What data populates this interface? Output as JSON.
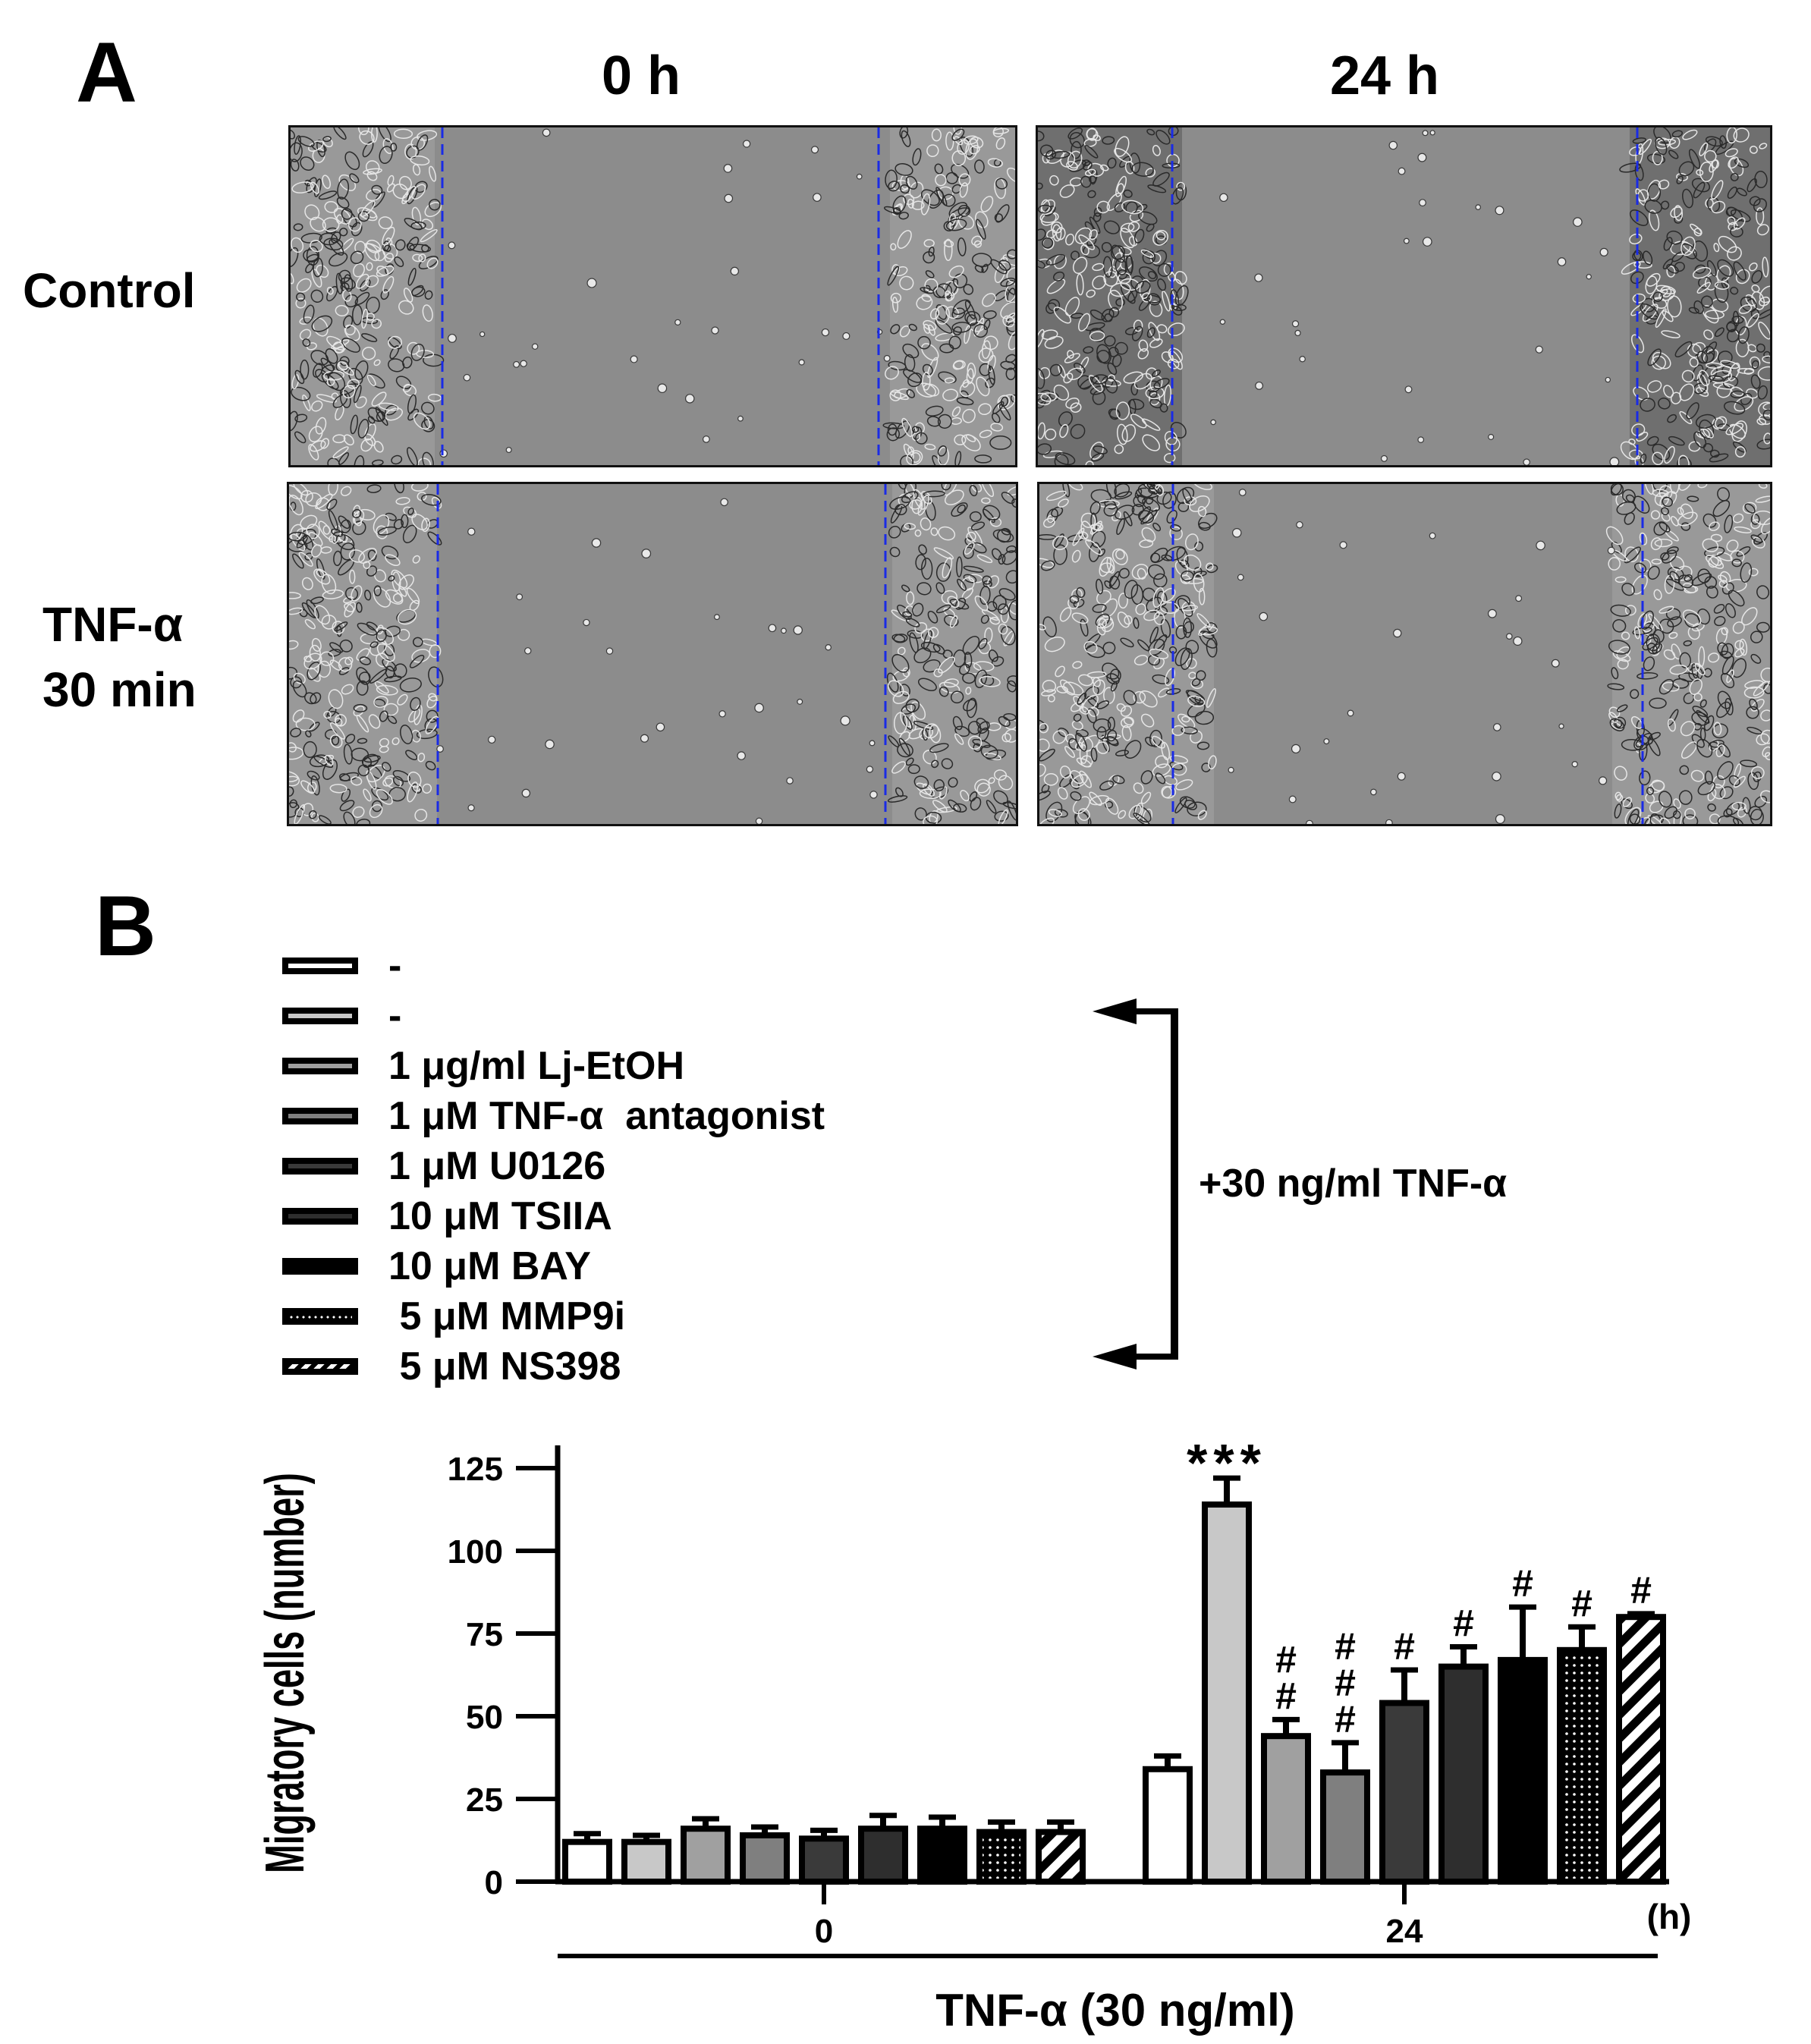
{
  "panel_a": {
    "letter": "A",
    "columns": [
      "0 h",
      "24 h"
    ],
    "rows": [
      {
        "label_lines": [
          "Control"
        ]
      },
      {
        "label_lines": [
          "TNF-α",
          "30 min"
        ]
      }
    ],
    "scratch_line_color": "#1a2be6"
  },
  "panel_b": {
    "letter": "B",
    "legend": [
      {
        "label": "-",
        "fill": "#ffffff"
      },
      {
        "label": "-",
        "fill": "#c8c8c8"
      },
      {
        "label": "1 μg/ml Lj-EtOH",
        "fill": "#a0a0a0"
      },
      {
        "label": "1 μM TNF-α  antagonist",
        "fill": "#7f7f7f"
      },
      {
        "label": "1 μM U0126",
        "fill": "#3a3a3a"
      },
      {
        "label": "10 μM TSIIA",
        "fill": "#2e2e2e"
      },
      {
        "label": "10 μM BAY",
        "fill": "#000000"
      },
      {
        "label": " 5 μM MMP9i",
        "fill": "dots"
      },
      {
        "label": " 5 μM NS398",
        "fill": "stripes"
      }
    ],
    "bracket_label": "+30 ng/ml TNF-α"
  },
  "chart_data": {
    "type": "bar",
    "ylabel": "Migratory cells (number)",
    "xlabel": "TNF-α  (30 ng/ml)",
    "x_unit": "(h)",
    "categories": [
      "0",
      "24"
    ],
    "ylim": [
      0,
      125
    ],
    "yticks": [
      0,
      25,
      50,
      75,
      100,
      125
    ],
    "series": [
      {
        "name": "-",
        "fill": "#ffffff",
        "values": [
          12,
          34
        ],
        "errors": [
          2.5,
          4
        ],
        "annotation": [
          "",
          ""
        ]
      },
      {
        "name": "-",
        "fill": "#c8c8c8",
        "values": [
          12,
          114
        ],
        "errors": [
          2,
          8
        ],
        "annotation": [
          "",
          "***"
        ]
      },
      {
        "name": "1 μg/ml Lj-EtOH",
        "fill": "#a0a0a0",
        "values": [
          16,
          44
        ],
        "errors": [
          3,
          5
        ],
        "annotation": [
          "",
          "#\n#"
        ]
      },
      {
        "name": "1 μM TNF-α  antagonist",
        "fill": "#7f7f7f",
        "values": [
          14,
          33
        ],
        "errors": [
          2.5,
          9
        ],
        "annotation": [
          "",
          "#\n#\n#"
        ]
      },
      {
        "name": "1 μM U0126",
        "fill": "#3a3a3a",
        "values": [
          13,
          54
        ],
        "errors": [
          2.5,
          10
        ],
        "annotation": [
          "",
          "#"
        ]
      },
      {
        "name": "10 μM TSIIA",
        "fill": "#2e2e2e",
        "values": [
          16,
          65
        ],
        "errors": [
          4,
          6
        ],
        "annotation": [
          "",
          "#"
        ]
      },
      {
        "name": "10 μM BAY",
        "fill": "#000000",
        "values": [
          16,
          67
        ],
        "errors": [
          3.5,
          16
        ],
        "annotation": [
          "",
          "#"
        ]
      },
      {
        "name": " 5 μM MMP9i",
        "fill": "dots",
        "values": [
          15,
          70
        ],
        "errors": [
          3,
          7
        ],
        "annotation": [
          "",
          "#"
        ]
      },
      {
        "name": " 5 μM NS398",
        "fill": "stripes",
        "values": [
          15,
          80
        ],
        "errors": [
          3,
          1
        ],
        "annotation": [
          "",
          "#"
        ]
      }
    ]
  }
}
